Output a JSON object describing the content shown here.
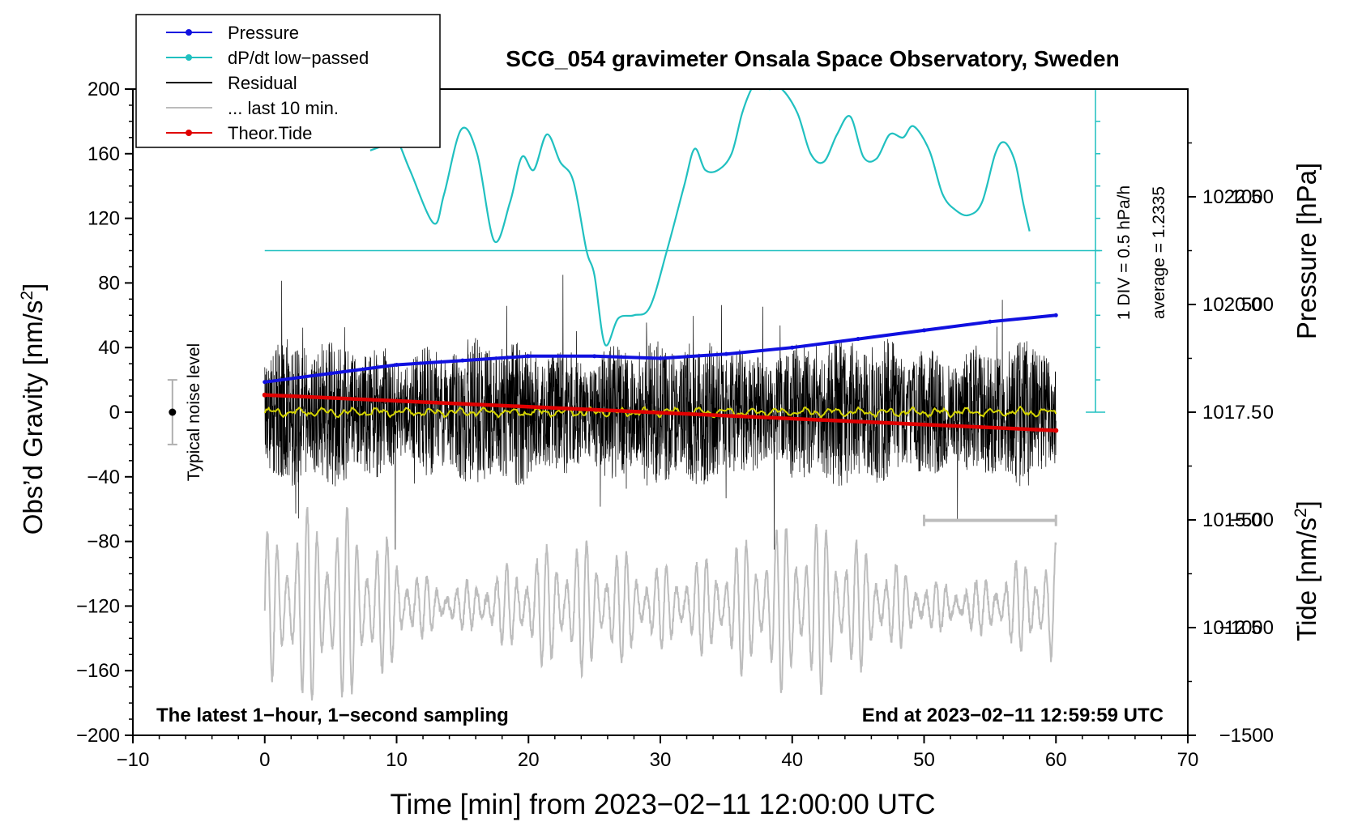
{
  "chart_data": {
    "type": "line",
    "title": "SCG_054 gravimeter Onsala Space Observatory, Sweden",
    "xlabel": "Time [min] from 2023−02−11 12:00:00 UTC",
    "ylabel_prefix": "Obs’d Gravity [nm/s",
    "ylabel_sup": "2",
    "ylabel_suffix": "]",
    "y2label": "Pressure [hPa]",
    "y3label_prefix": "Tide [nm/s",
    "y3label_sup": "2",
    "y3label_suffix": "]",
    "xlim": [
      -10,
      70
    ],
    "ylim": [
      -200,
      200
    ],
    "y2lim": [
      1010.0,
      1025.0
    ],
    "y3lim": [
      -1500,
      1500
    ],
    "x_ticks": [
      -10,
      0,
      10,
      20,
      30,
      40,
      50,
      60,
      70
    ],
    "x_tick_labels": [
      "−10",
      "0",
      "10",
      "20",
      "30",
      "40",
      "50",
      "60",
      "70"
    ],
    "y_ticks": [
      200,
      160,
      120,
      80,
      40,
      0,
      -40,
      -80,
      -120,
      -160,
      -200
    ],
    "y_tick_labels": [
      "200",
      "160",
      "120",
      "80",
      "40",
      "0",
      "−40",
      "−80",
      "−120",
      "−160",
      "−200"
    ],
    "y2_ticks": [
      1022.5,
      1020.0,
      1017.5,
      1015.0,
      1012.5
    ],
    "y2_tick_labels": [
      "1022.5",
      "1020.0",
      "1017.5",
      "1015.0",
      "1012.5"
    ],
    "y3_ticks": [
      1000,
      500,
      0,
      -500,
      -1000,
      -1500
    ],
    "y3_tick_labels": [
      "1000",
      "500",
      "0",
      "−500",
      "−1000",
      "−1500"
    ],
    "legend": {
      "position": "top-left",
      "entries": [
        {
          "label": "Pressure",
          "color": "#1010e0",
          "marker": true
        },
        {
          "label": "dP/dt low−passed",
          "color": "#20c0c0",
          "marker": true
        },
        {
          "label": "Residual",
          "color": "#000000",
          "marker": false
        },
        {
          "label": "... last 10 min.",
          "color": "#bbbbbb",
          "marker": false
        },
        {
          "label": "Theor.Tide",
          "color": "#e00000",
          "marker": true
        }
      ]
    },
    "series": [
      {
        "name": "Pressure",
        "axis": "pressure",
        "color": "#1010e0",
        "x": [
          0,
          5,
          10,
          15,
          20,
          25,
          30,
          35,
          40,
          45,
          50,
          55,
          60
        ],
        "values": [
          1018.2,
          1018.4,
          1018.6,
          1018.7,
          1018.8,
          1018.8,
          1018.75,
          1018.85,
          1019.0,
          1019.2,
          1019.4,
          1019.6,
          1019.75
        ]
      },
      {
        "name": "dP/dt low−passed",
        "axis": "gravity",
        "color": "#20c0c0",
        "x": [
          8,
          9,
          10,
          11,
          12.8,
          13.6,
          14.9,
          16.1,
          17.4,
          18.6,
          19.5,
          20.4,
          21.4,
          22.4,
          23.4,
          24.4,
          25.0,
          25.8,
          26.8,
          28.0,
          29.2,
          30.5,
          31.8,
          32.6,
          33.4,
          34.4,
          35.4,
          36.2,
          36.9,
          37.4,
          38.2,
          39.2,
          40.4,
          41.4,
          42.4,
          43.4,
          44.4,
          45.4,
          46.4,
          47.4,
          48.4,
          49.2,
          50.4,
          51.4,
          52.4,
          53.4,
          54.4,
          55.4,
          56.1,
          56.9,
          57.5,
          58.0
        ],
        "values": [
          162,
          165,
          168,
          150,
          117,
          135,
          175,
          160,
          106,
          130,
          158,
          150,
          172,
          155,
          143,
          100,
          85,
          42,
          58,
          60,
          65,
          100,
          140,
          163,
          150,
          150,
          160,
          185,
          200,
          205,
          200,
          200,
          185,
          160,
          155,
          172,
          183,
          158,
          157,
          172,
          170,
          177,
          162,
          135,
          125,
          122,
          130,
          160,
          167,
          155,
          130,
          112
        ]
      },
      {
        "name": "Theor.Tide",
        "axis": "tide",
        "color": "#e00000",
        "x": [
          0,
          60
        ],
        "values": [
          80,
          -85
        ]
      }
    ],
    "residual_smoothed": {
      "name": "Residual (smoothed)",
      "color": "#d4d400",
      "level": 0
    },
    "dpdt_baseline": {
      "value": 100,
      "color": "#20c0c0"
    },
    "noise_bar": {
      "label": "Typical noise level",
      "x": -7,
      "center": 0,
      "low": -20,
      "high": 20
    },
    "last10_marker": {
      "from": 50,
      "to": 60,
      "level": -67
    },
    "scale_bar": {
      "label1": "1 DIV = 0.5 hPa/h",
      "label2": "average = 1.2335"
    },
    "footer_left": "The latest 1−hour, 1−second sampling",
    "footer_right": "End at 2023−02−11 12:59:59 UTC"
  }
}
